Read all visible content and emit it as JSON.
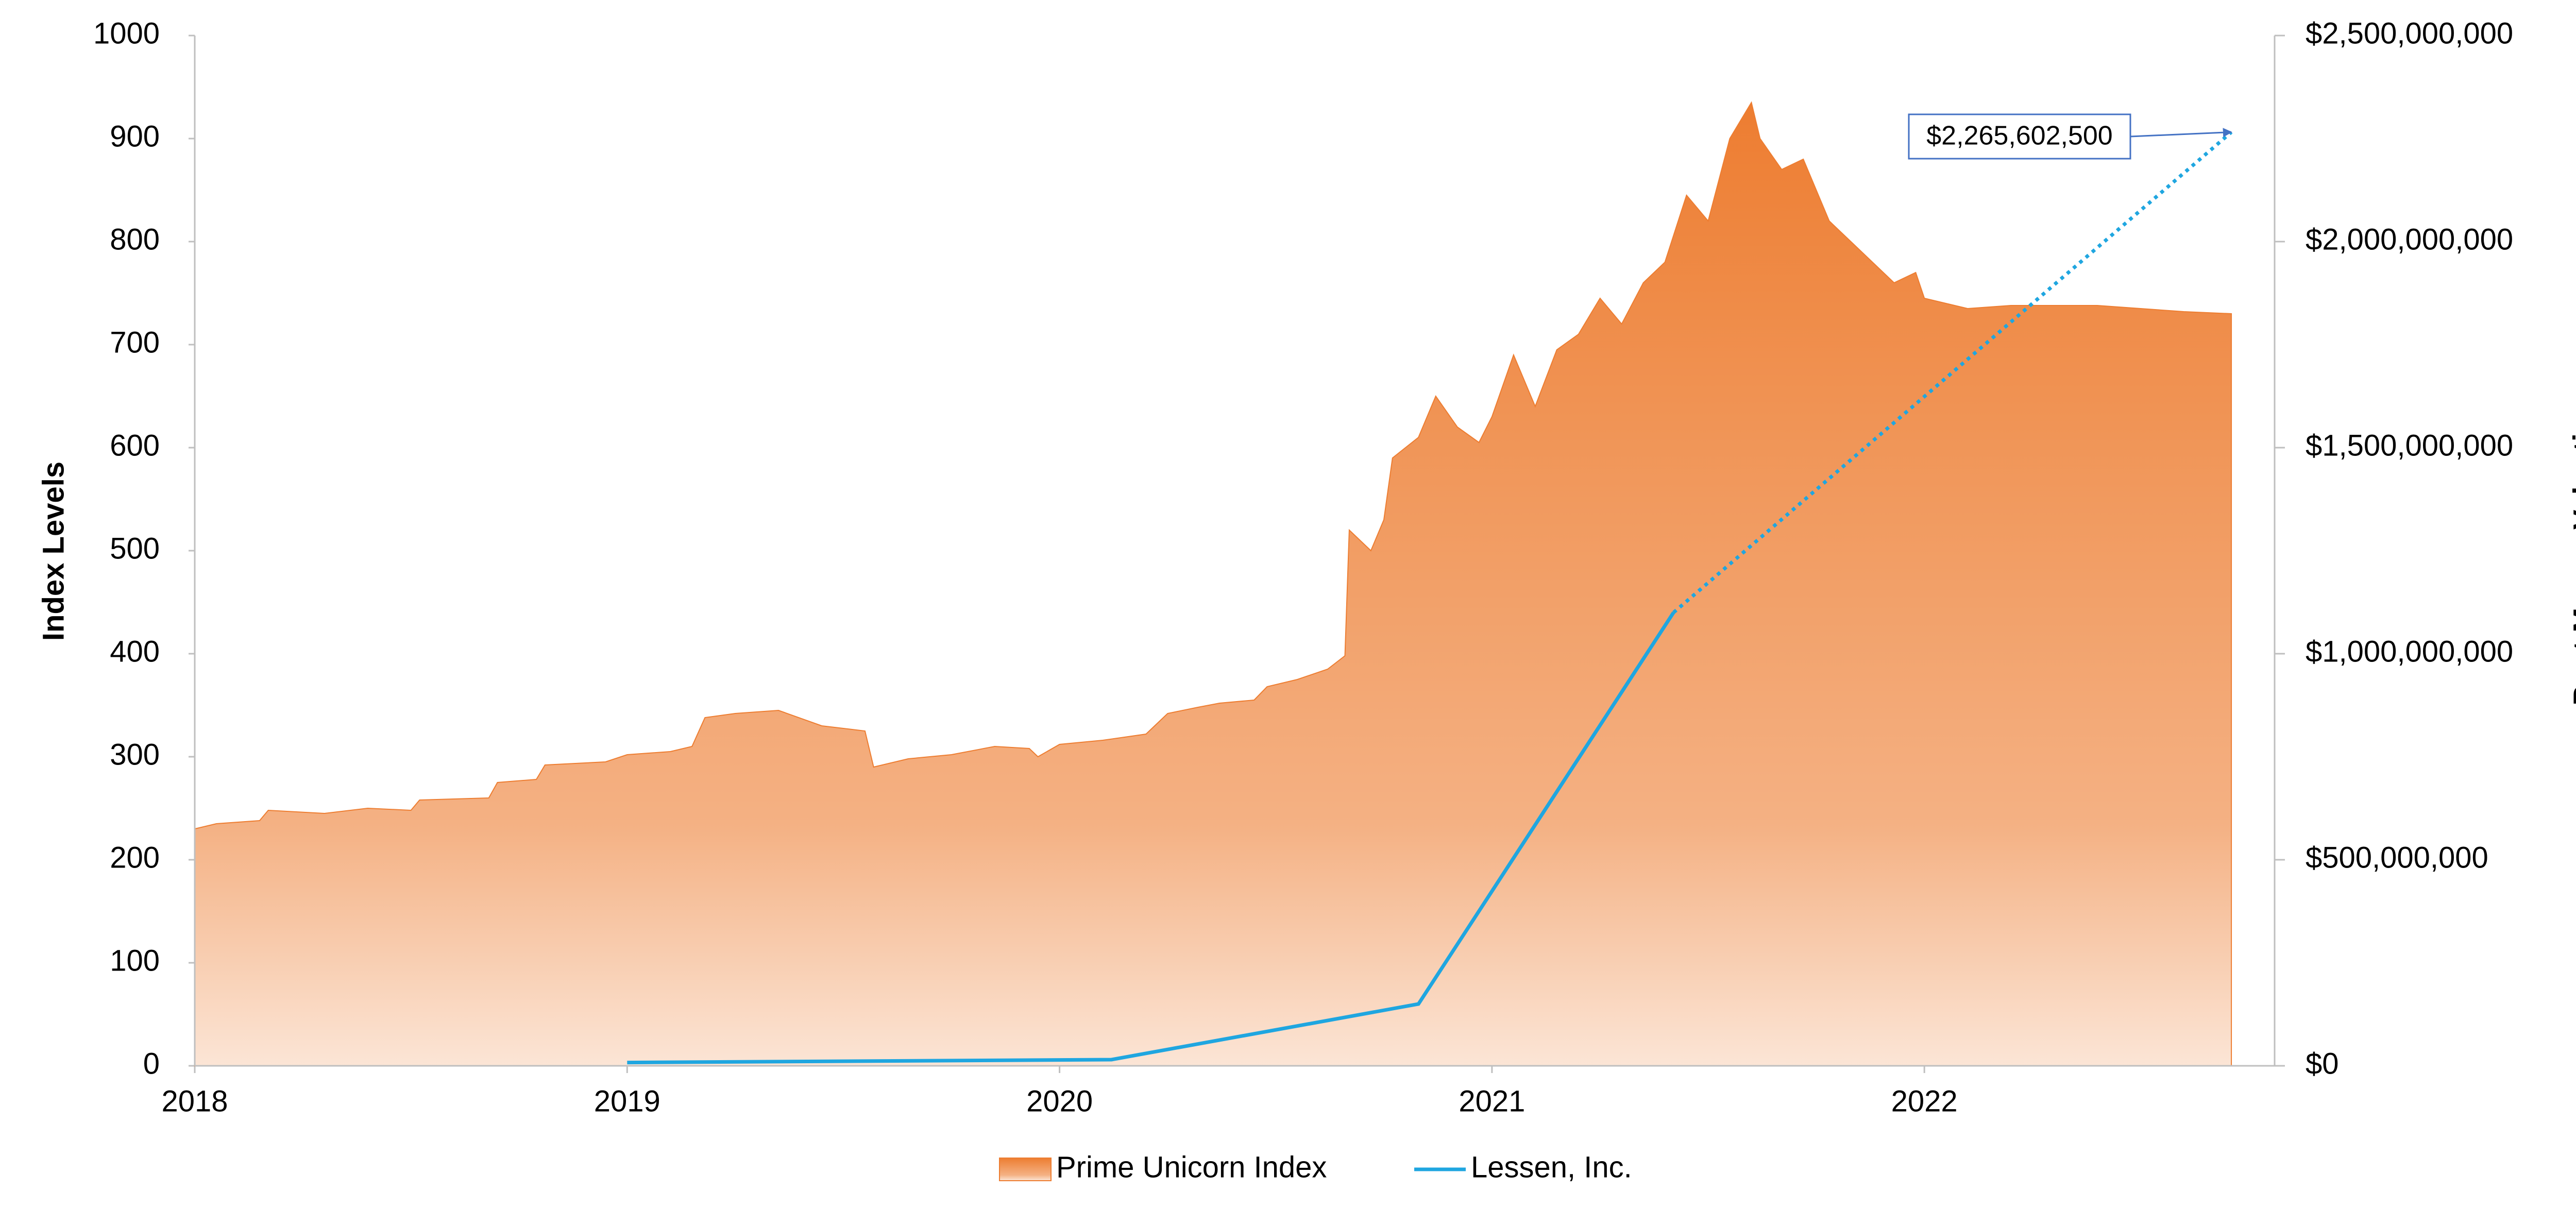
{
  "chart_data": {
    "type": "area-line",
    "y_label": "Index Levels",
    "y2_label": "Post Money Valuation",
    "xlim": [
      2018,
      2022.81
    ],
    "xticks": [
      2018,
      2019,
      2020,
      2021,
      2022
    ],
    "ylim": [
      0,
      1000
    ],
    "yticks": [
      0,
      100,
      200,
      300,
      400,
      500,
      600,
      700,
      800,
      900,
      1000
    ],
    "y2lim": [
      0,
      2500000000
    ],
    "y2ticks": [
      {
        "value": 0,
        "label": "$0"
      },
      {
        "value": 500000000,
        "label": "$500,000,000"
      },
      {
        "value": 1000000000,
        "label": "$1,000,000,000"
      },
      {
        "value": 1500000000,
        "label": "$1,500,000,000"
      },
      {
        "value": 2000000000,
        "label": "$2,000,000,000"
      },
      {
        "value": 2500000000,
        "label": "$2,500,000,000"
      }
    ],
    "legend": "bottom",
    "series": [
      {
        "name": "Prime Unicorn Index",
        "kind": "area",
        "color": "#ed7d31",
        "x": [
          2018.0,
          2018.05,
          2018.15,
          2018.17,
          2018.3,
          2018.4,
          2018.5,
          2018.52,
          2018.68,
          2018.7,
          2018.79,
          2018.81,
          2018.95,
          2019.0,
          2019.1,
          2019.15,
          2019.18,
          2019.25,
          2019.35,
          2019.45,
          2019.55,
          2019.57,
          2019.65,
          2019.75,
          2019.85,
          2019.93,
          2019.95,
          2020.0,
          2020.1,
          2020.2,
          2020.25,
          2020.32,
          2020.37,
          2020.45,
          2020.48,
          2020.55,
          2020.62,
          2020.66,
          2020.67,
          2020.72,
          2020.75,
          2020.77,
          2020.83,
          2020.87,
          2020.92,
          2020.97,
          2021.0,
          2021.05,
          2021.1,
          2021.15,
          2021.2,
          2021.25,
          2021.3,
          2021.35,
          2021.4,
          2021.45,
          2021.5,
          2021.55,
          2021.6,
          2021.62,
          2021.67,
          2021.72,
          2021.78,
          2021.83,
          2021.88,
          2021.93,
          2021.98,
          2022.0,
          2022.1,
          2022.2,
          2022.3,
          2022.4,
          2022.5,
          2022.6,
          2022.71
        ],
        "values": [
          230,
          235,
          238,
          248,
          245,
          250,
          248,
          258,
          260,
          275,
          278,
          292,
          295,
          302,
          305,
          310,
          338,
          342,
          345,
          330,
          325,
          290,
          298,
          302,
          310,
          308,
          300,
          312,
          316,
          322,
          342,
          348,
          352,
          355,
          368,
          375,
          385,
          398,
          520,
          500,
          530,
          590,
          610,
          650,
          620,
          605,
          630,
          690,
          640,
          695,
          710,
          745,
          720,
          760,
          780,
          845,
          820,
          900,
          935,
          900,
          870,
          880,
          820,
          800,
          780,
          760,
          770,
          745,
          735,
          738,
          738,
          738,
          735,
          732,
          730
        ]
      },
      {
        "name": "Lessen, Inc.",
        "kind": "line",
        "axis": "y2",
        "color": "#1fa6e0",
        "x": [
          2019.0,
          2020.12,
          2020.83,
          2021.42,
          2022.71
        ],
        "values": [
          8000000,
          15000000,
          150000000,
          1100000000,
          2265602500
        ]
      }
    ],
    "annotations": [
      {
        "text": "$2,265,602,500",
        "value": 2265602500
      }
    ]
  }
}
